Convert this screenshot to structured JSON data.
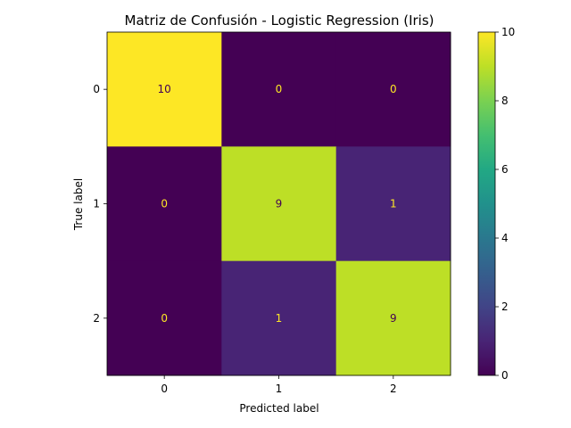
{
  "chart_data": {
    "type": "heatmap",
    "title": "Matriz de Confusión - Logistic Regression (Iris)",
    "xlabel": "Predicted label",
    "ylabel": "True label",
    "x_categories": [
      "0",
      "1",
      "2"
    ],
    "y_categories": [
      "0",
      "1",
      "2"
    ],
    "matrix": [
      [
        10,
        0,
        0
      ],
      [
        0,
        9,
        1
      ],
      [
        0,
        1,
        9
      ]
    ],
    "color_range": [
      0,
      10
    ],
    "colormap": "viridis",
    "colorbar_ticks": [
      "0",
      "2",
      "4",
      "6",
      "8",
      "10"
    ],
    "text_color_light": "#fde725",
    "text_color_dark": "#440154",
    "grid": false
  }
}
